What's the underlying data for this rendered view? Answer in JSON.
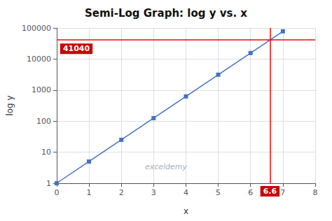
{
  "chart_data": {
    "type": "line",
    "title": "Semi-Log Graph: log y vs. x",
    "xlabel": "x",
    "ylabel": "log y",
    "x": [
      0,
      1,
      2,
      3,
      4,
      5,
      6,
      7
    ],
    "values": [
      1,
      5,
      25,
      125,
      625,
      3125,
      15625,
      78125
    ],
    "color": "#4472C4",
    "marker": "square",
    "xlim": [
      0,
      8
    ],
    "ylim": [
      1,
      100000
    ],
    "xticks": [
      0,
      1,
      2,
      3,
      4,
      5,
      6,
      7,
      8
    ],
    "yticks": [
      1,
      10,
      100,
      1000,
      10000,
      100000
    ],
    "log": "y",
    "grid": true,
    "annotations": [
      {
        "type": "hline",
        "y": 41040,
        "text": "41040",
        "color": "#FF0000",
        "background": "#CC0000"
      },
      {
        "type": "vline",
        "x": 6.6,
        "text": "6.6",
        "color": "#FF0000",
        "background": "#CC0000"
      },
      {
        "type": "text",
        "text": "exceldemy"
      }
    ]
  }
}
